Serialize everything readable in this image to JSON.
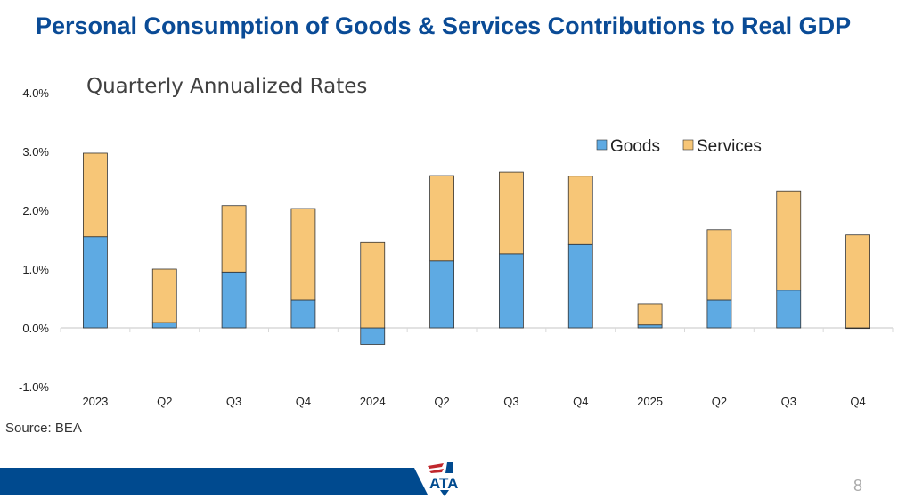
{
  "title": "Personal Consumption of Goods & Services Contributions to Real GDP",
  "subtitle": "Quarterly Annualized Rates",
  "source": "Source: BEA",
  "page_number": "8",
  "logo_text": "ATA",
  "chart_data": {
    "type": "bar",
    "stacked": true,
    "categories": [
      "2023",
      "Q2",
      "Q3",
      "Q4",
      "2024",
      "Q2",
      "Q3",
      "Q4",
      "2025",
      "Q2",
      "Q3",
      "Q4"
    ],
    "series": [
      {
        "name": "Goods",
        "color": "#5eaae3",
        "values": [
          1.55,
          0.09,
          0.95,
          0.47,
          -0.28,
          1.14,
          1.26,
          1.42,
          0.05,
          0.47,
          0.64,
          -0.01
        ]
      },
      {
        "name": "Services",
        "color": "#f7c677",
        "values": [
          1.42,
          0.91,
          1.13,
          1.56,
          1.45,
          1.45,
          1.39,
          1.16,
          0.36,
          1.2,
          1.69,
          1.58
        ]
      }
    ],
    "ylim": [
      -1,
      4
    ],
    "yticks": [
      "-1.0%",
      "0.0%",
      "1.0%",
      "2.0%",
      "3.0%",
      "4.0%"
    ],
    "grid": false,
    "legend": "top-right"
  }
}
